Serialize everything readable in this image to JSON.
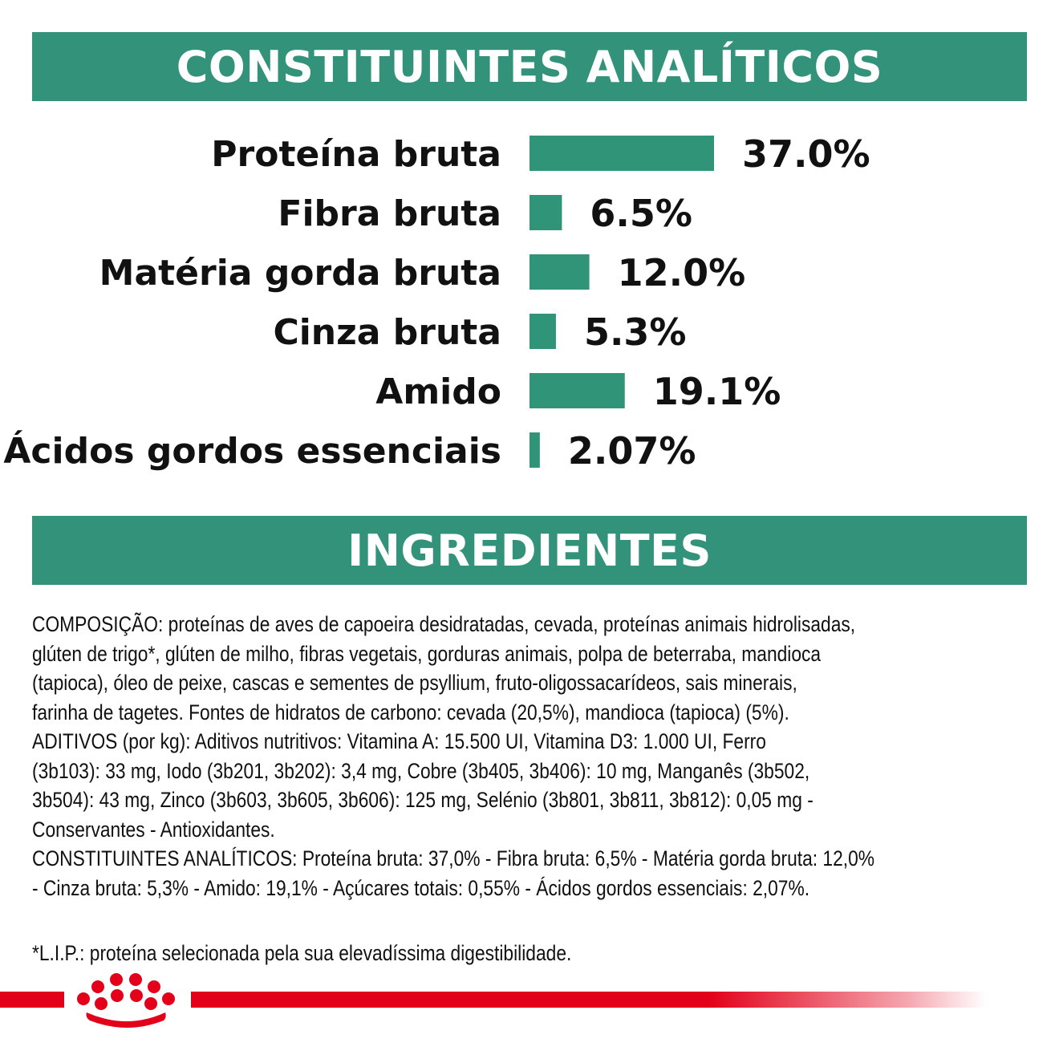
{
  "sections": {
    "analytics_title": "CONSTITUINTES ANALÍTICOS",
    "ingredients_title": "INGREDIENTES"
  },
  "colors": {
    "accent_green": "#33937a",
    "bar_green": "#2f9478",
    "brand_red": "#e2001a",
    "text": "#111111"
  },
  "chart_data": {
    "type": "bar",
    "orientation": "horizontal",
    "categories": [
      "Proteína bruta",
      "Fibra bruta",
      "Matéria gorda bruta",
      "Cinza bruta",
      "Amido",
      "Ácidos gordos essenciais"
    ],
    "values": [
      37.0,
      6.5,
      12.0,
      5.3,
      19.1,
      2.07
    ],
    "labels": [
      "37.0%",
      "6.5%",
      "12.0%",
      "5.3%",
      "19.1%",
      "2.07%"
    ],
    "unit": "%",
    "xlim": [
      0,
      37.0
    ],
    "grid": false,
    "legend": "none",
    "title": "",
    "xlabel": "",
    "ylabel": ""
  },
  "composition": [
    "COMPOSIÇÃO: proteínas de aves de capoeira desidratadas, cevada, proteínas animais hidrolisadas,",
    "glúten de trigo*, glúten de milho, fibras vegetais, gorduras animais, polpa de beterraba, mandioca",
    "(tapioca), óleo de peixe, cascas e sementes de psyllium, fruto-oligossacarídeos, sais minerais,",
    "farinha de tagetes. Fontes de hidratos de carbono: cevada (20,5%), mandioca (tapioca) (5%).",
    "ADITIVOS (por kg): Aditivos nutritivos: Vitamina A: 15.500 UI, Vitamina D3: 1.000 UI, Ferro",
    "(3b103): 33 mg, Iodo (3b201, 3b202): 3,4 mg, Cobre (3b405, 3b406): 10 mg, Manganês (3b502,",
    "3b504): 43 mg, Zinco (3b603, 3b605, 3b606): 125 mg, Selénio (3b801, 3b811, 3b812): 0,05 mg -",
    "Conservantes - Antioxidantes.",
    "CONSTITUINTES ANALÍTICOS: Proteína bruta: 37,0% - Fibra bruta: 6,5% - Matéria gorda bruta: 12,0%",
    "- Cinza bruta: 5,3% - Amido: 19,1% - Açúcares totais: 0,55% - Ácidos gordos essenciais: 2,07%."
  ],
  "footnote": "*L.I.P.: proteína selecionada pela sua elevadíssima digestibilidade.",
  "logo": {
    "icon": "royal-canin-crown-icon"
  }
}
